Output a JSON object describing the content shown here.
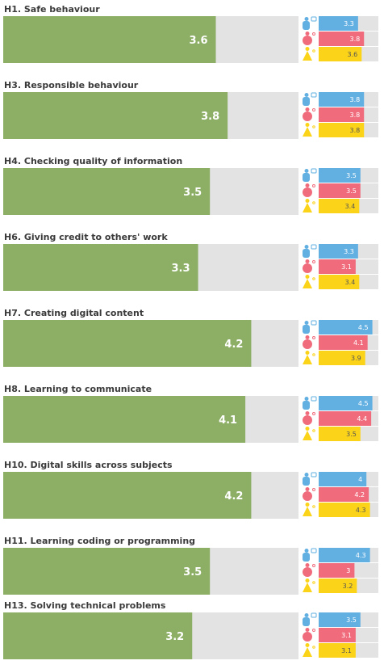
{
  "colors": {
    "main_bar": "#8caf65",
    "track": "#e3e3e3",
    "series": [
      "#62afe2",
      "#f06c7d",
      "#fbd319"
    ],
    "series_text": [
      "#ffffff",
      "#ffffff",
      "#555555"
    ]
  },
  "chart_data": {
    "type": "bar",
    "xlim": [
      0,
      5
    ],
    "group_icons": [
      "teacher-icon",
      "student-icon",
      "parent-icon"
    ],
    "categories": [
      "H1. Safe behaviour",
      "H3. Responsible behaviour",
      "H4. Checking quality of information",
      "H6. Giving credit to others' work",
      "H7. Creating digital content",
      "H8. Learning to communicate",
      "H10. Digital skills across subjects",
      "H11. Learning coding or programming",
      "H13. Solving technical problems"
    ],
    "values": [
      3.6,
      3.8,
      3.5,
      3.3,
      4.2,
      4.1,
      4.2,
      3.5,
      3.2
    ],
    "series": [
      {
        "values": [
          3.3,
          3.8,
          3.5,
          3.3,
          4.5,
          4.5,
          4,
          4.3,
          3.5
        ]
      },
      {
        "values": [
          3.8,
          3.8,
          3.5,
          3.1,
          4.1,
          4.4,
          4.2,
          3,
          3.1
        ]
      },
      {
        "values": [
          3.6,
          3.8,
          3.4,
          3.4,
          3.9,
          3.5,
          4.3,
          3.2,
          3.1
        ]
      }
    ]
  }
}
